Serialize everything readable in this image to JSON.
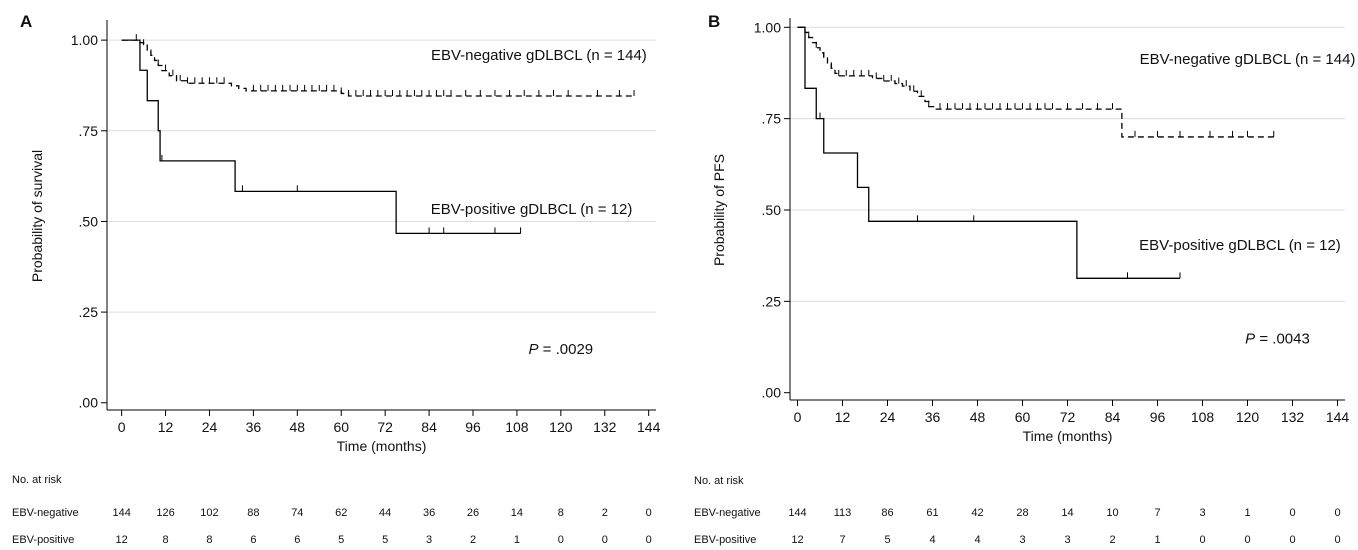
{
  "chart_data": [
    {
      "type": "line",
      "panel_label": "A",
      "xlabel": "Time (months)",
      "ylabel": "Probability of survival",
      "xlim": [
        -4,
        146
      ],
      "ylim": [
        -0.02,
        1.05
      ],
      "x_ticks": [
        0,
        12,
        24,
        36,
        48,
        60,
        72,
        84,
        96,
        108,
        120,
        132,
        144
      ],
      "y_ticks": [
        0,
        0.25,
        0.5,
        0.75,
        1.0
      ],
      "y_tick_labels": [
        ".00",
        ".25",
        ".50",
        ".75",
        "1.00"
      ],
      "grid": "horizontal",
      "p_value": "P = .0029",
      "series": [
        {
          "name": "EBV-negative gDLBCL (n = 144)",
          "style": "dashed",
          "steps": [
            [
              0,
              1.0
            ],
            [
              5,
              0.993
            ],
            [
              6,
              0.986
            ],
            [
              7,
              0.972
            ],
            [
              8,
              0.958
            ],
            [
              9,
              0.944
            ],
            [
              10,
              0.93
            ],
            [
              11,
              0.916
            ],
            [
              13,
              0.902
            ],
            [
              15,
              0.888
            ],
            [
              18,
              0.881
            ],
            [
              30,
              0.874
            ],
            [
              32,
              0.867
            ],
            [
              34,
              0.86
            ],
            [
              60,
              0.853
            ],
            [
              62,
              0.846
            ],
            [
              140,
              0.846
            ]
          ],
          "censor_times": [
            6,
            8,
            10,
            12,
            14,
            16,
            18,
            20,
            22,
            24,
            26,
            28,
            36,
            38,
            40,
            42,
            44,
            46,
            48,
            50,
            52,
            54,
            56,
            58,
            60,
            62,
            64,
            66,
            68,
            70,
            72,
            74,
            76,
            78,
            80,
            82,
            84,
            86,
            88,
            90,
            94,
            98,
            102,
            106,
            110,
            114,
            118,
            122,
            130,
            136,
            140
          ],
          "label_pos": [
            114,
            0.945
          ]
        },
        {
          "name": "EBV-positive gDLBCL (n = 12)",
          "style": "solid",
          "steps": [
            [
              0,
              1.0
            ],
            [
              5,
              0.917
            ],
            [
              7,
              0.833
            ],
            [
              10,
              0.75
            ],
            [
              10.5,
              0.667
            ],
            [
              31,
              0.583
            ],
            [
              75,
              0.467
            ],
            [
              109,
              0.467
            ]
          ],
          "censor_times": [
            4,
            11,
            33,
            48,
            84,
            88,
            102,
            109
          ],
          "label_pos": [
            112,
            0.52
          ]
        }
      ],
      "risk_table": {
        "header": "No. at risk",
        "times": [
          0,
          12,
          24,
          36,
          48,
          60,
          72,
          84,
          96,
          108,
          120,
          132,
          144
        ],
        "rows": [
          {
            "label": "EBV-negative",
            "values": [
              "144",
              "126",
              "102",
              "88",
              "74",
              "62",
              "44",
              "36",
              "26",
              "14",
              "8",
              "2",
              "0"
            ]
          },
          {
            "label": "EBV-positive",
            "values": [
              "12",
              "8",
              "8",
              "6",
              "6",
              "5",
              "5",
              "3",
              "2",
              "1",
              "0",
              "0",
              "0"
            ]
          }
        ]
      }
    },
    {
      "type": "line",
      "panel_label": "B",
      "xlabel": "Time (months)",
      "ylabel": "Probability of PFS",
      "xlim": [
        -2,
        146
      ],
      "ylim": [
        -0.02,
        1.02
      ],
      "x_ticks": [
        0,
        12,
        24,
        36,
        48,
        60,
        72,
        84,
        96,
        108,
        120,
        132,
        144
      ],
      "y_ticks": [
        0,
        0.25,
        0.5,
        0.75,
        1.0
      ],
      "y_tick_labels": [
        ".00",
        ".25",
        ".50",
        ".75",
        "1.00"
      ],
      "grid": "horizontal",
      "p_value": "P = .0043",
      "series": [
        {
          "name": "EBV-negative gDLBCL (n = 144)",
          "style": "dashed",
          "steps": [
            [
              0,
              1.0
            ],
            [
              2,
              0.986
            ],
            [
              3,
              0.972
            ],
            [
              4,
              0.958
            ],
            [
              5,
              0.944
            ],
            [
              6,
              0.93
            ],
            [
              7,
              0.916
            ],
            [
              8,
              0.902
            ],
            [
              9,
              0.888
            ],
            [
              10,
              0.874
            ],
            [
              11,
              0.867
            ],
            [
              20,
              0.86
            ],
            [
              23,
              0.853
            ],
            [
              26,
              0.846
            ],
            [
              28,
              0.839
            ],
            [
              30,
              0.825
            ],
            [
              32,
              0.811
            ],
            [
              34,
              0.797
            ],
            [
              35,
              0.783
            ],
            [
              37,
              0.776
            ],
            [
              86,
              0.776
            ],
            [
              86.5,
              0.7
            ],
            [
              127,
              0.7
            ]
          ],
          "censor_times": [
            3,
            5,
            7,
            9,
            11,
            13,
            15,
            17,
            19,
            21,
            23,
            25,
            27,
            29,
            31,
            33,
            35,
            38,
            40,
            42,
            44,
            46,
            48,
            50,
            52,
            54,
            56,
            58,
            60,
            62,
            64,
            66,
            68,
            72,
            76,
            80,
            84,
            90,
            96,
            102,
            110,
            116,
            120,
            127
          ],
          "label_pos": [
            120,
            0.9
          ]
        },
        {
          "name": "EBV-positive gDLBCL (n = 12)",
          "style": "solid",
          "steps": [
            [
              0,
              1.0
            ],
            [
              2,
              0.833
            ],
            [
              5,
              0.75
            ],
            [
              7,
              0.656
            ],
            [
              16,
              0.562
            ],
            [
              19,
              0.469
            ],
            [
              74,
              0.469
            ],
            [
              74.5,
              0.313
            ],
            [
              102,
              0.313
            ]
          ],
          "censor_times": [
            6,
            32,
            47,
            88,
            102
          ],
          "label_pos": [
            118,
            0.39
          ]
        }
      ],
      "risk_table": {
        "header": "No. at risk",
        "times": [
          0,
          12,
          24,
          36,
          48,
          60,
          72,
          84,
          96,
          108,
          120,
          132,
          144
        ],
        "rows": [
          {
            "label": "EBV-negative",
            "values": [
              "144",
              "113",
              "86",
              "61",
              "42",
              "28",
              "14",
              "10",
              "7",
              "3",
              "1",
              "0",
              "0"
            ]
          },
          {
            "label": "EBV-positive",
            "values": [
              "12",
              "7",
              "5",
              "4",
              "4",
              "3",
              "3",
              "2",
              "1",
              "0",
              "0",
              "0",
              "0"
            ]
          }
        ]
      }
    }
  ]
}
